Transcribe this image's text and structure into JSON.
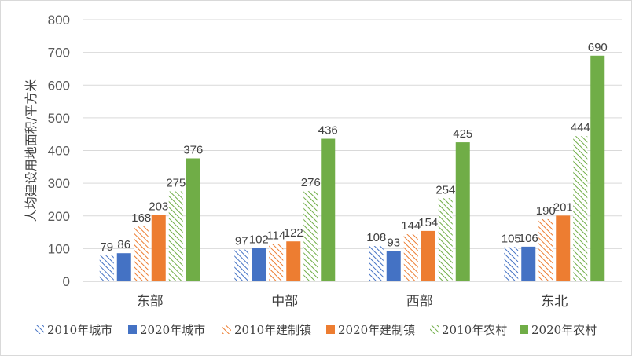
{
  "chart_data": {
    "type": "bar",
    "title": "",
    "xlabel": "",
    "ylabel": "人均建设用地面积/平方米",
    "ylim": [
      0,
      800
    ],
    "yticks": [
      0,
      100,
      200,
      300,
      400,
      500,
      600,
      700,
      800
    ],
    "grid": true,
    "legend_position": "bottom",
    "categories": [
      "东部",
      "中部",
      "西部",
      "东北"
    ],
    "series": [
      {
        "name": "2010年城市",
        "values": [
          79,
          97,
          108,
          105
        ],
        "color": "#4472C4",
        "pattern": "hatched"
      },
      {
        "name": "2020年城市",
        "values": [
          86,
          102,
          93,
          106
        ],
        "color": "#4472C4",
        "pattern": "solid"
      },
      {
        "name": "2010年建制镇",
        "values": [
          168,
          114,
          144,
          190
        ],
        "color": "#ED7D31",
        "pattern": "hatched"
      },
      {
        "name": "2020年建制镇",
        "values": [
          203,
          122,
          154,
          201
        ],
        "color": "#ED7D31",
        "pattern": "solid"
      },
      {
        "name": "2010年农村",
        "values": [
          275,
          276,
          254,
          444
        ],
        "color": "#70AD47",
        "pattern": "hatched"
      },
      {
        "name": "2020年农村",
        "values": [
          376,
          436,
          425,
          690
        ],
        "color": "#70AD47",
        "pattern": "solid"
      }
    ]
  }
}
